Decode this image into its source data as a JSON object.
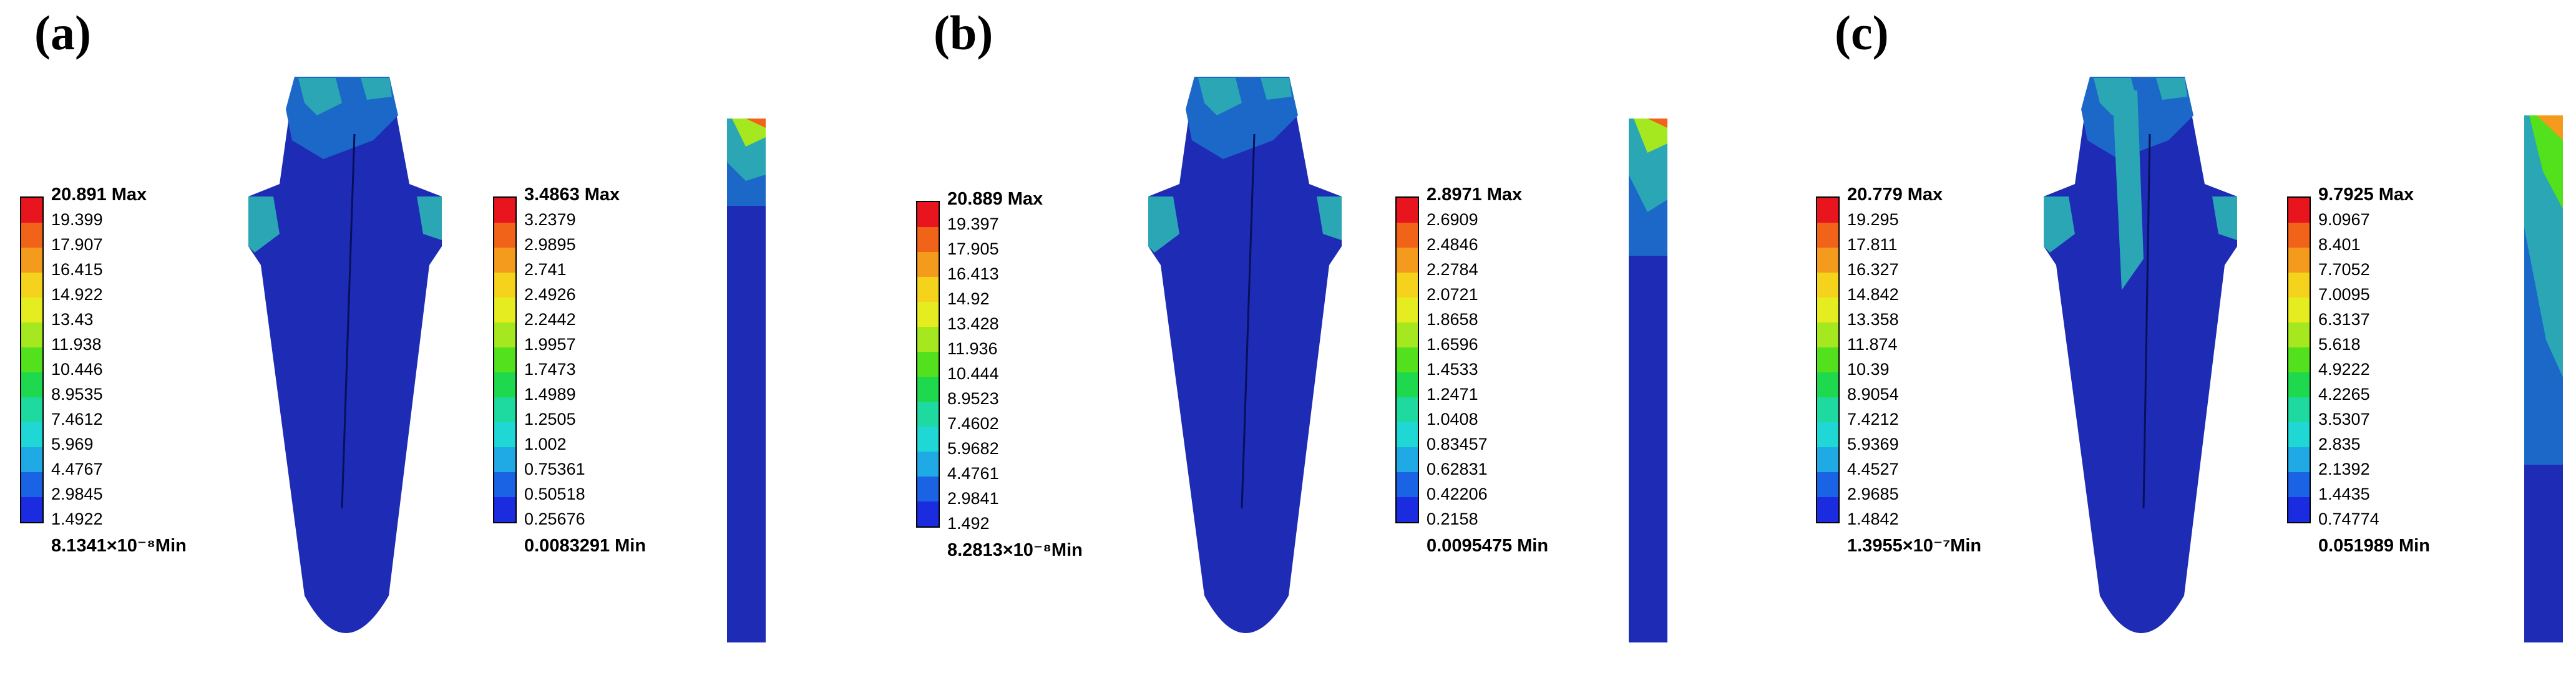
{
  "panels": [
    {
      "label": "(a)",
      "legend1": {
        "max": "20.891 Max",
        "ticks": [
          "19.399",
          "17.907",
          "16.415",
          "14.922",
          "13.43",
          "11.938",
          "10.446",
          "8.9535",
          "7.4612",
          "5.969",
          "4.4767",
          "2.9845",
          "1.4922"
        ],
        "min": "8.1341×10⁻⁸Min"
      },
      "legend2": {
        "max": "3.4863 Max",
        "ticks": [
          "3.2379",
          "2.9895",
          "2.741",
          "2.4926",
          "2.2442",
          "1.9957",
          "1.7473",
          "1.4989",
          "1.2505",
          "1.002",
          "0.75361",
          "0.50518",
          "0.25676"
        ],
        "min": "0.0083291 Min"
      }
    },
    {
      "label": "(b)",
      "legend1": {
        "max": "20.889 Max",
        "ticks": [
          "19.397",
          "17.905",
          "16.413",
          "14.92",
          "13.428",
          "11.936",
          "10.444",
          "8.9523",
          "7.4602",
          "5.9682",
          "4.4761",
          "2.9841",
          "1.492"
        ],
        "min": "8.2813×10⁻⁸Min"
      },
      "legend2": {
        "max": "2.8971 Max",
        "ticks": [
          "2.6909",
          "2.4846",
          "2.2784",
          "2.0721",
          "1.8658",
          "1.6596",
          "1.4533",
          "1.2471",
          "1.0408",
          "0.83457",
          "0.62831",
          "0.42206",
          "0.2158"
        ],
        "min": "0.0095475 Min"
      }
    },
    {
      "label": "(c)",
      "legend1": {
        "max": "20.779 Max",
        "ticks": [
          "19.295",
          "17.811",
          "16.327",
          "14.842",
          "13.358",
          "11.874",
          "10.39",
          "8.9054",
          "7.4212",
          "5.9369",
          "4.4527",
          "2.9685",
          "1.4842"
        ],
        "min": "1.3955×10⁻⁷Min"
      },
      "legend2": {
        "max": "9.7925 Max",
        "ticks": [
          "9.0967",
          "8.401",
          "7.7052",
          "7.0095",
          "6.3137",
          "5.618",
          "4.9222",
          "4.2265",
          "3.5307",
          "2.835",
          "2.1392",
          "1.4435",
          "0.74774"
        ],
        "min": "0.051989 Min"
      }
    }
  ],
  "colors": {
    "scale": [
      "#e8141e",
      "#f2631a",
      "#f49a1c",
      "#f5d21c",
      "#e5ec1f",
      "#a6e81f",
      "#53e01d",
      "#1ed94e",
      "#1ed9a0",
      "#1fd8d6",
      "#1fa9e5",
      "#1a63e5",
      "#1a2be0"
    ],
    "model_base": "#1d2bb5",
    "model_mid": "#1c68c9",
    "model_hot": "#2aa6b4"
  }
}
